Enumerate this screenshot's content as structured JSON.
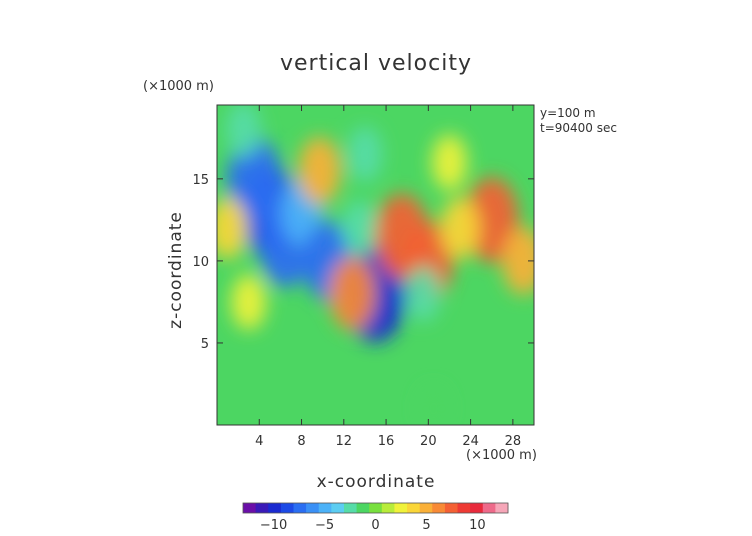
{
  "chart_data": {
    "type": "heatmap",
    "title": "vertical velocity",
    "xlabel": "x-coordinate",
    "ylabel": "z-coordinate",
    "x_unit": "(×1000 m)",
    "y_unit": "(×1000 m)",
    "annotations": [
      "y=100 m",
      "t=90400 sec"
    ],
    "xlim": [
      0,
      30
    ],
    "ylim": [
      0,
      19.5
    ],
    "x_ticks": [
      4,
      8,
      12,
      16,
      20,
      24,
      28
    ],
    "y_ticks": [
      5,
      10,
      15
    ],
    "colorbar": {
      "ticks": [
        -10,
        -5,
        0,
        5,
        10
      ],
      "range": [
        -13,
        13
      ],
      "colors": [
        "#6a0fa8",
        "#3a1ab8",
        "#1a2ad0",
        "#1c4ae6",
        "#2a6ef2",
        "#3a90f6",
        "#4cb2f8",
        "#5ccdf2",
        "#56dca8",
        "#4cd662",
        "#78e03e",
        "#b8ec3a",
        "#f0f23a",
        "#fad638",
        "#fab038",
        "#f88a36",
        "#f46034",
        "#ee3a34",
        "#e82a3c",
        "#ee6a8a",
        "#f6a6b8"
      ]
    },
    "cells": [
      {
        "x": 5,
        "z": 13,
        "value": -9
      },
      {
        "x": 3.5,
        "z": 15,
        "value": -8
      },
      {
        "x": 6.5,
        "z": 11,
        "value": -8
      },
      {
        "x": 8,
        "z": 13,
        "value": -5
      },
      {
        "x": 10.5,
        "z": 10,
        "value": -7
      },
      {
        "x": 15,
        "z": 8,
        "value": -10
      },
      {
        "x": 13.5,
        "z": 12,
        "value": -3
      },
      {
        "x": 14,
        "z": 16.5,
        "value": -3
      },
      {
        "x": 2.5,
        "z": 18,
        "value": -3
      },
      {
        "x": 1,
        "z": 12,
        "value": 4
      },
      {
        "x": 9.7,
        "z": 15.5,
        "value": 5
      },
      {
        "x": 12.8,
        "z": 8,
        "value": 6
      },
      {
        "x": 17.5,
        "z": 11.5,
        "value": 8
      },
      {
        "x": 20,
        "z": 10,
        "value": 7
      },
      {
        "x": 26,
        "z": 12.5,
        "value": 8
      },
      {
        "x": 23,
        "z": 12,
        "value": 4
      },
      {
        "x": 22,
        "z": 16,
        "value": 3
      },
      {
        "x": 29,
        "z": 10,
        "value": 5
      },
      {
        "x": 3,
        "z": 7.5,
        "value": 3
      },
      {
        "x": 19.5,
        "z": 8,
        "value": -3
      },
      {
        "x": 20.5,
        "z": 1,
        "value": -1
      }
    ]
  }
}
